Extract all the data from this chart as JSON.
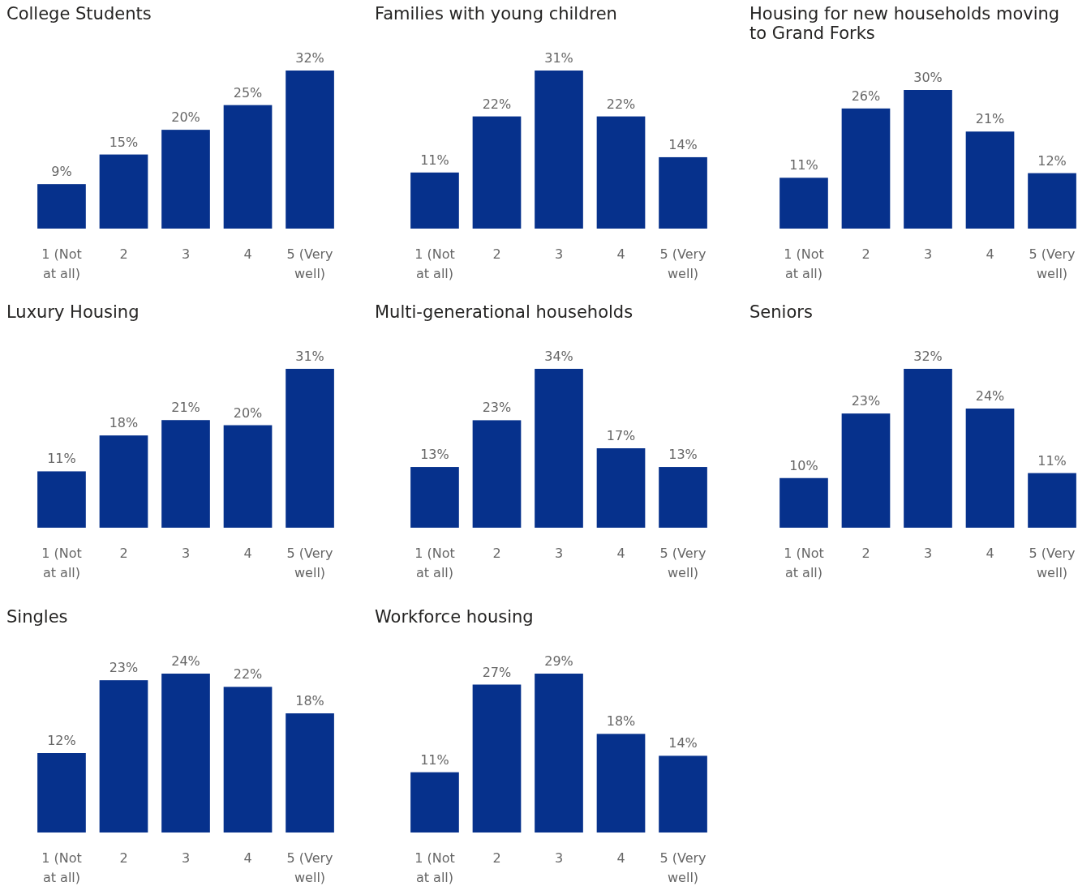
{
  "chart_data": [
    {
      "type": "bar",
      "title": "College Students",
      "categories": [
        "1 (Not at all)",
        "2",
        "3",
        "4",
        "5 (Very well)"
      ],
      "values": [
        9,
        15,
        20,
        25,
        32
      ],
      "value_labels": [
        "9%",
        "15%",
        "20%",
        "25%",
        "32%"
      ],
      "color": "#06318c"
    },
    {
      "type": "bar",
      "title": "Families with young children",
      "categories": [
        "1 (Not at all)",
        "2",
        "3",
        "4",
        "5 (Very well)"
      ],
      "values": [
        11,
        22,
        31,
        22,
        14
      ],
      "value_labels": [
        "11%",
        "22%",
        "31%",
        "22%",
        "14%"
      ],
      "color": "#06318c"
    },
    {
      "type": "bar",
      "title": "Housing for new households moving to Grand Forks",
      "categories": [
        "1 (Not at all)",
        "2",
        "3",
        "4",
        "5 (Very well)"
      ],
      "values": [
        11,
        26,
        30,
        21,
        12
      ],
      "value_labels": [
        "11%",
        "26%",
        "30%",
        "21%",
        "12%"
      ],
      "color": "#06318c"
    },
    {
      "type": "bar",
      "title": "Luxury Housing",
      "categories": [
        "1 (Not at all)",
        "2",
        "3",
        "4",
        "5 (Very well)"
      ],
      "values": [
        11,
        18,
        21,
        20,
        31
      ],
      "value_labels": [
        "11%",
        "18%",
        "21%",
        "20%",
        "31%"
      ],
      "color": "#06318c"
    },
    {
      "type": "bar",
      "title": "Multi-generational households",
      "categories": [
        "1 (Not at all)",
        "2",
        "3",
        "4",
        "5 (Very well)"
      ],
      "values": [
        13,
        23,
        34,
        17,
        13
      ],
      "value_labels": [
        "13%",
        "23%",
        "34%",
        "17%",
        "13%"
      ],
      "color": "#06318c"
    },
    {
      "type": "bar",
      "title": "Seniors",
      "categories": [
        "1 (Not at all)",
        "2",
        "3",
        "4",
        "5 (Very well)"
      ],
      "values": [
        10,
        23,
        32,
        24,
        11
      ],
      "value_labels": [
        "10%",
        "23%",
        "32%",
        "24%",
        "11%"
      ],
      "color": "#06318c"
    },
    {
      "type": "bar",
      "title": "Singles",
      "categories": [
        "1 (Not at all)",
        "2",
        "3",
        "4",
        "5 (Very well)"
      ],
      "values": [
        12,
        23,
        24,
        22,
        18
      ],
      "value_labels": [
        "12%",
        "23%",
        "24%",
        "22%",
        "18%"
      ],
      "color": "#06318c"
    },
    {
      "type": "bar",
      "title": "Workforce housing",
      "categories": [
        "1 (Not at all)",
        "2",
        "3",
        "4",
        "5 (Very well)"
      ],
      "values": [
        11,
        27,
        29,
        18,
        14
      ],
      "value_labels": [
        "11%",
        "27%",
        "29%",
        "18%",
        "14%"
      ],
      "color": "#06318c"
    }
  ]
}
